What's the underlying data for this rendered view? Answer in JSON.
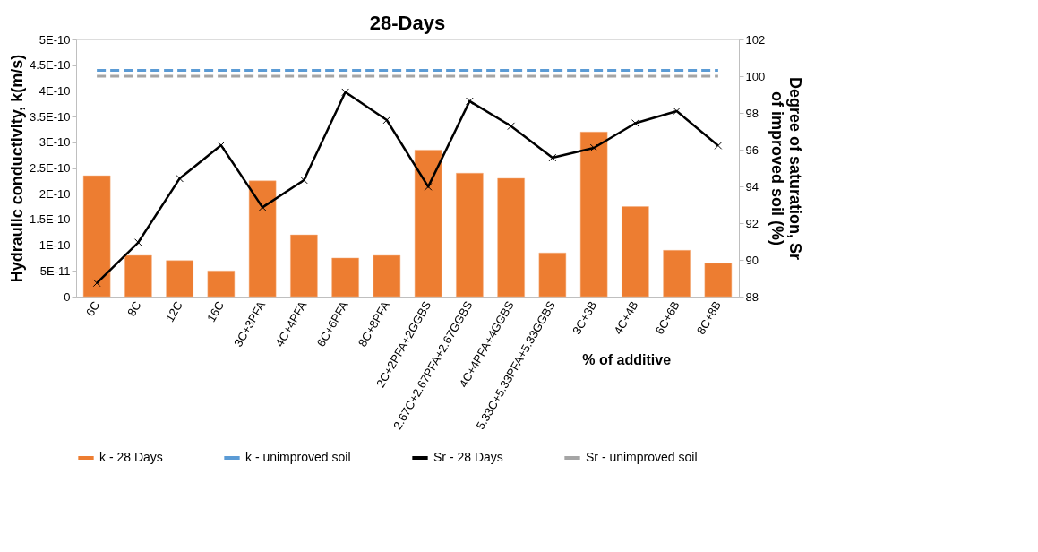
{
  "chart_data": {
    "type": "bar",
    "title": "28-Days",
    "xlabel": "% of additive",
    "ylabel": "Hydraulic conductivity, k(m/s)",
    "y2label": "Degree of saturation, Sr\nof improved soil (%)",
    "categories": [
      "6C",
      "8C",
      "12C",
      "16C",
      "3C+3PFA",
      "4C+4PFA",
      "6C+6PFA",
      "8C+8PFA",
      "2C+2PFA+2GGBS",
      "2.67C+2.67PFA+2.67GGBS",
      "4C+4PFA+4GGBS",
      "5.33C+5.33PFA+5.33GGBS",
      "3C+3B",
      "4C+4B",
      "6C+6B",
      "8C+8B"
    ],
    "series": [
      {
        "name": "k - 28 Days",
        "color": "#ed7d31",
        "values": [
          2.35e-10,
          8e-11,
          7e-11,
          5e-11,
          2.25e-10,
          1.2e-10,
          7.5e-11,
          8e-11,
          2.85e-10,
          2.4e-10,
          2.3e-10,
          8.5e-11,
          3.2e-10,
          1.75e-10,
          9e-11,
          6.5e-11
        ]
      },
      {
        "name": "k - unimproved soil",
        "type": "line",
        "color": "#5b9bd5",
        "line_style": "dashed",
        "marker": "none",
        "values": [
          4.4e-10,
          4.4e-10,
          4.4e-10,
          4.4e-10,
          4.4e-10,
          4.4e-10,
          4.4e-10,
          4.4e-10,
          4.4e-10,
          4.4e-10,
          4.4e-10,
          4.4e-10,
          4.4e-10,
          4.4e-10,
          4.4e-10,
          4.4e-10
        ]
      },
      {
        "name": "Sr - 28 Days",
        "type": "line",
        "axis": "y2",
        "color": "#000000",
        "line_style": "solid",
        "marker": "cross",
        "values": [
          88.74,
          90.95,
          94.43,
          96.24,
          92.86,
          94.34,
          99.13,
          97.61,
          93.98,
          98.64,
          97.28,
          95.56,
          96.1,
          97.44,
          98.1,
          96.22
        ]
      },
      {
        "name": "Sr - unimproved soil",
        "type": "line",
        "axis": "y2",
        "color": "#a5a5a5",
        "line_style": "dashed",
        "marker": "none",
        "values": [
          100,
          100,
          100,
          100,
          100,
          100,
          100,
          100,
          100,
          100,
          100,
          100,
          100,
          100,
          100,
          100
        ]
      }
    ],
    "ylim": [
      0,
      5e-10
    ],
    "yticks": [
      0,
      {
        "value": 5e-11,
        "label": "5E-11"
      },
      {
        "value": 1e-10,
        "label": "1E-10"
      },
      {
        "value": 1.5e-10,
        "label": "1.5E-10"
      },
      {
        "value": 2e-10,
        "label": "2E-10"
      },
      {
        "value": 2.5e-10,
        "label": "2.5E-10"
      },
      {
        "value": 3e-10,
        "label": "3E-10"
      },
      {
        "value": 3.5e-10,
        "label": "3.5E-10"
      },
      {
        "value": 4e-10,
        "label": "4E-10"
      },
      {
        "value": 4.5e-10,
        "label": "4.5E-10"
      },
      {
        "value": 5e-10,
        "label": "5E-10"
      }
    ],
    "y2lim": [
      88,
      102
    ],
    "y2ticks": [
      88,
      90,
      92,
      94,
      96,
      98,
      100,
      102
    ],
    "grid": false,
    "legend": "bottom"
  }
}
